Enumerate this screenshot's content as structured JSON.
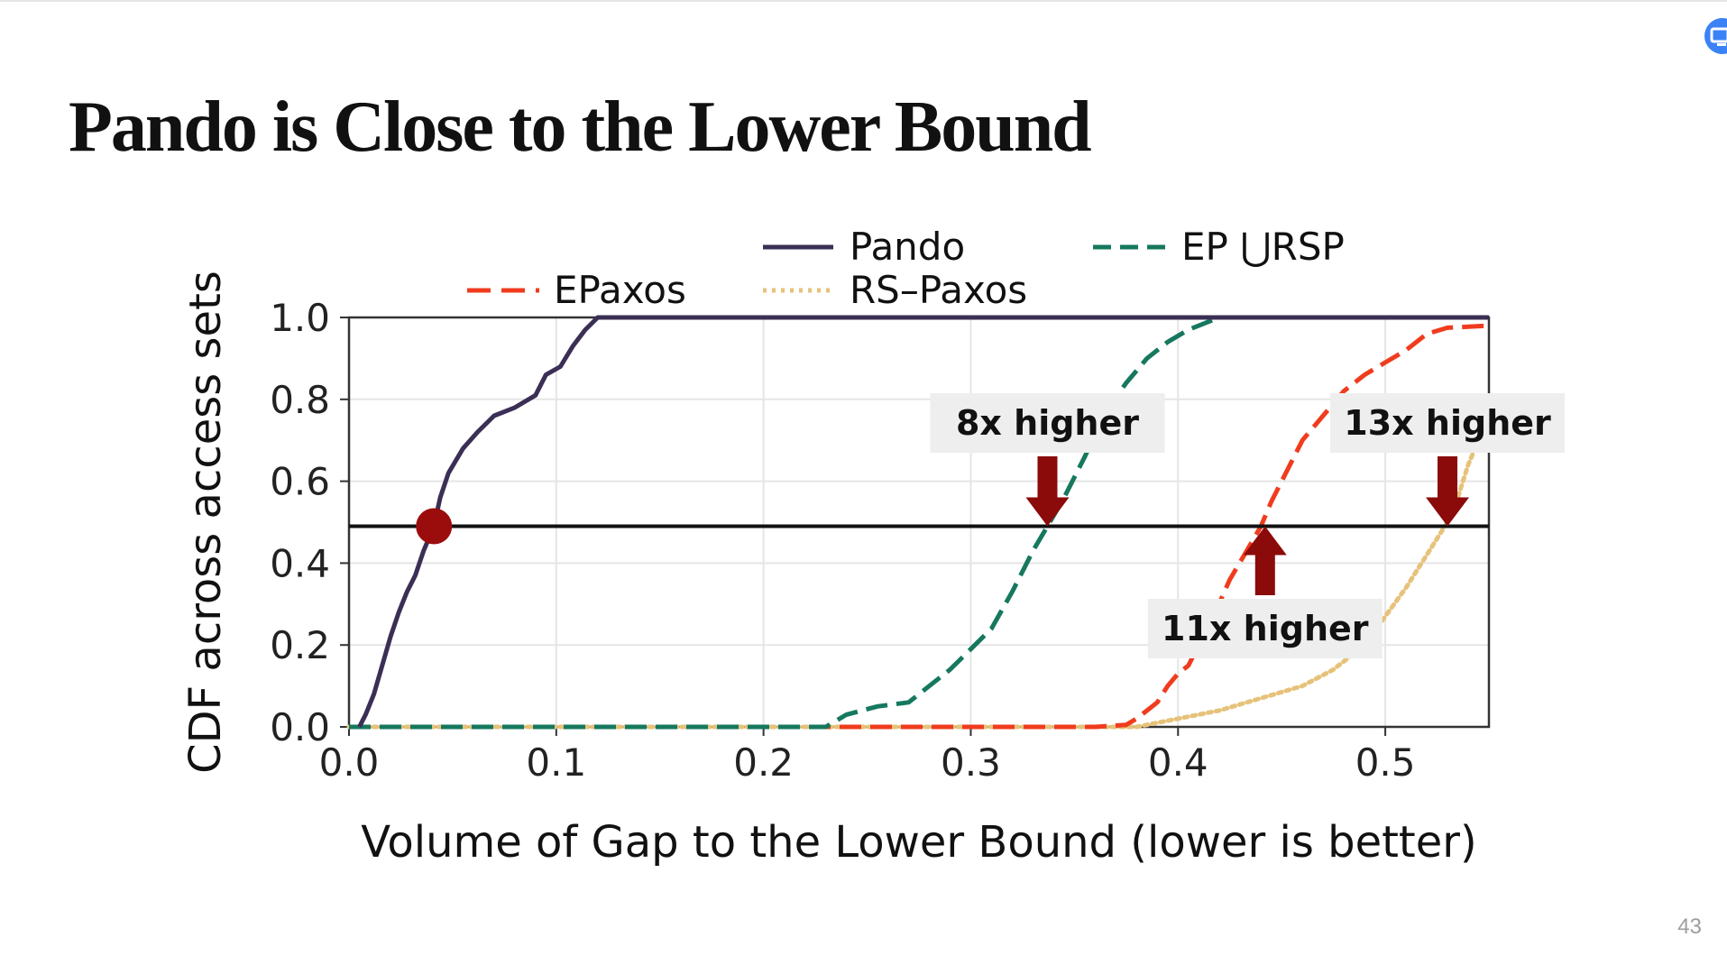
{
  "slide": {
    "title": "Pando is Close to the Lower Bound",
    "page_number": "43"
  },
  "chart_data": {
    "type": "line",
    "xlabel": "Volume of Gap to the Lower Bound (lower is better)",
    "ylabel": "CDF across access sets",
    "xlim": [
      0.0,
      0.55
    ],
    "ylim": [
      0.0,
      1.0
    ],
    "x_ticks": [
      "0.0",
      "0.1",
      "0.2",
      "0.3",
      "0.4",
      "0.5"
    ],
    "y_ticks": [
      "0.0",
      "0.2",
      "0.4",
      "0.6",
      "0.8",
      "1.0"
    ],
    "grid": true,
    "legend_position": "top",
    "reference_line": {
      "y": 0.49
    },
    "marker": {
      "x": 0.041,
      "y": 0.49
    },
    "series": [
      {
        "name": "Pando",
        "color": "#3b2f55",
        "style": "solid",
        "points": [
          [
            0.005,
            0.0
          ],
          [
            0.008,
            0.03
          ],
          [
            0.012,
            0.08
          ],
          [
            0.016,
            0.15
          ],
          [
            0.02,
            0.22
          ],
          [
            0.024,
            0.28
          ],
          [
            0.028,
            0.33
          ],
          [
            0.032,
            0.37
          ],
          [
            0.036,
            0.43
          ],
          [
            0.041,
            0.49
          ],
          [
            0.044,
            0.56
          ],
          [
            0.048,
            0.62
          ],
          [
            0.055,
            0.68
          ],
          [
            0.062,
            0.72
          ],
          [
            0.07,
            0.76
          ],
          [
            0.08,
            0.78
          ],
          [
            0.09,
            0.81
          ],
          [
            0.095,
            0.86
          ],
          [
            0.102,
            0.88
          ],
          [
            0.108,
            0.93
          ],
          [
            0.114,
            0.97
          ],
          [
            0.12,
            1.0
          ],
          [
            0.55,
            1.0
          ]
        ]
      },
      {
        "name": "EPaxos",
        "color": "#f03c1e",
        "style": "dashed",
        "points": [
          [
            0.0,
            0.0
          ],
          [
            0.36,
            0.0
          ],
          [
            0.375,
            0.005
          ],
          [
            0.38,
            0.02
          ],
          [
            0.39,
            0.06
          ],
          [
            0.395,
            0.1
          ],
          [
            0.4,
            0.13
          ],
          [
            0.405,
            0.15
          ],
          [
            0.41,
            0.2
          ],
          [
            0.418,
            0.28
          ],
          [
            0.425,
            0.36
          ],
          [
            0.432,
            0.42
          ],
          [
            0.44,
            0.49
          ],
          [
            0.445,
            0.55
          ],
          [
            0.452,
            0.62
          ],
          [
            0.46,
            0.7
          ],
          [
            0.47,
            0.76
          ],
          [
            0.48,
            0.82
          ],
          [
            0.49,
            0.86
          ],
          [
            0.5,
            0.89
          ],
          [
            0.51,
            0.92
          ],
          [
            0.52,
            0.96
          ],
          [
            0.53,
            0.975
          ],
          [
            0.55,
            0.98
          ]
        ]
      },
      {
        "name": "RS–Paxos",
        "color": "#e6c27a",
        "style": "dotted",
        "points": [
          [
            0.0,
            0.0
          ],
          [
            0.38,
            0.0
          ],
          [
            0.4,
            0.02
          ],
          [
            0.42,
            0.04
          ],
          [
            0.44,
            0.07
          ],
          [
            0.46,
            0.1
          ],
          [
            0.475,
            0.14
          ],
          [
            0.49,
            0.2
          ],
          [
            0.5,
            0.27
          ],
          [
            0.51,
            0.34
          ],
          [
            0.52,
            0.42
          ],
          [
            0.53,
            0.5
          ],
          [
            0.535,
            0.56
          ],
          [
            0.54,
            0.64
          ],
          [
            0.545,
            0.7
          ],
          [
            0.55,
            0.74
          ]
        ]
      },
      {
        "name": "EP ⋃RSP",
        "color": "#16785e",
        "style": "dashed",
        "points": [
          [
            0.0,
            0.0
          ],
          [
            0.23,
            0.0
          ],
          [
            0.24,
            0.03
          ],
          [
            0.255,
            0.05
          ],
          [
            0.27,
            0.06
          ],
          [
            0.28,
            0.1
          ],
          [
            0.29,
            0.14
          ],
          [
            0.3,
            0.19
          ],
          [
            0.31,
            0.24
          ],
          [
            0.32,
            0.33
          ],
          [
            0.33,
            0.43
          ],
          [
            0.337,
            0.49
          ],
          [
            0.345,
            0.56
          ],
          [
            0.355,
            0.66
          ],
          [
            0.365,
            0.77
          ],
          [
            0.375,
            0.84
          ],
          [
            0.385,
            0.9
          ],
          [
            0.395,
            0.94
          ],
          [
            0.405,
            0.97
          ],
          [
            0.42,
            1.0
          ],
          [
            0.55,
            1.0
          ]
        ]
      }
    ],
    "annotations": [
      {
        "text": "8x higher",
        "arrow_x": 0.337,
        "direction": "down"
      },
      {
        "text": "11x higher",
        "arrow_x": 0.442,
        "direction": "up"
      },
      {
        "text": "13x higher",
        "arrow_x": 0.53,
        "direction": "down"
      }
    ]
  }
}
